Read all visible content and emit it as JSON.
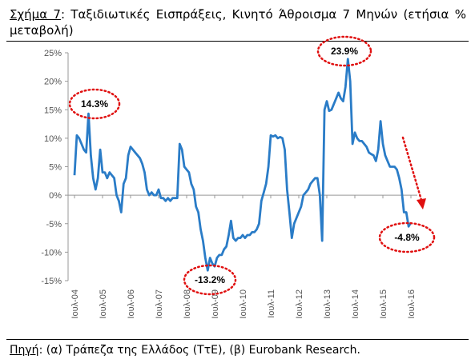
{
  "caption_label": "Σχήμα 7",
  "caption": ": Ταξιδιωτικές Εισπράξεις, Κινητό Άθροισμα 7 Μηνών (ετήσια % μεταβολή)",
  "source_label": "Πηγή",
  "source": ": (α) Τράπεζα της Ελλάδος (ΤτΕ), (β) Eurobank Research.",
  "chart_data": {
    "type": "line",
    "color": "#2a7cc7",
    "ylim": [
      -15,
      25
    ],
    "yticks": [
      {
        "value": -15,
        "label": "-15%"
      },
      {
        "value": -10,
        "label": "-10%"
      },
      {
        "value": -5,
        "label": "-5%"
      },
      {
        "value": 0,
        "label": "0%"
      },
      {
        "value": 5,
        "label": "5%"
      },
      {
        "value": 10,
        "label": "10%"
      },
      {
        "value": 15,
        "label": "15%"
      },
      {
        "value": 20,
        "label": "20%"
      },
      {
        "value": 25,
        "label": "25%"
      }
    ],
    "categories": [
      "Ιουλ-04",
      null,
      null,
      null,
      null,
      null,
      null,
      null,
      null,
      null,
      null,
      null,
      "Ιουλ-05",
      null,
      null,
      null,
      null,
      null,
      null,
      null,
      null,
      null,
      null,
      null,
      "Ιουλ-06",
      null,
      null,
      null,
      null,
      null,
      null,
      null,
      null,
      null,
      null,
      null,
      "Ιουλ-07",
      null,
      null,
      null,
      null,
      null,
      null,
      null,
      null,
      null,
      null,
      null,
      "Ιουλ-08",
      null,
      null,
      null,
      null,
      null,
      null,
      null,
      null,
      null,
      null,
      null,
      "Ιουλ-09",
      null,
      null,
      null,
      null,
      null,
      null,
      null,
      null,
      null,
      null,
      null,
      "Ιουλ-10",
      null,
      null,
      null,
      null,
      null,
      null,
      null,
      null,
      null,
      null,
      null,
      "Ιουλ-11",
      null,
      null,
      null,
      null,
      null,
      null,
      null,
      null,
      null,
      null,
      null,
      "Ιουλ-12",
      null,
      null,
      null,
      null,
      null,
      null,
      null,
      null,
      null,
      null,
      null,
      "Ιουλ-13",
      null,
      null,
      null,
      null,
      null,
      null,
      null,
      null,
      null,
      null,
      null,
      "Ιουλ-14",
      null,
      null,
      null,
      null,
      null,
      null,
      null,
      null,
      null,
      null,
      null,
      "Ιουλ-15",
      null,
      null,
      null,
      null,
      null,
      null,
      null,
      null,
      null,
      null,
      null,
      "Ιουλ-16"
    ],
    "values": [
      3.5,
      10.5,
      10,
      9,
      8,
      7.5,
      14.3,
      7,
      3,
      1,
      3,
      8,
      4,
      4,
      3,
      4,
      3.5,
      3,
      0,
      -1,
      -3,
      2,
      3,
      7,
      8.5,
      8,
      7.5,
      7,
      6.5,
      5.5,
      4,
      1,
      0,
      0.5,
      0,
      0,
      1,
      -0.5,
      -0.5,
      -1,
      -0.5,
      -1,
      -0.5,
      -0.5,
      -0.5,
      9,
      8,
      5,
      4.5,
      4,
      2,
      1,
      -2,
      -3,
      -6,
      -8,
      -11,
      -13.2,
      -11,
      -12,
      -12.5,
      -11,
      -10.5,
      -10.5,
      -9.5,
      -9,
      -7,
      -4.5,
      -7.5,
      -8,
      -7.5,
      -7.5,
      -7,
      -7.5,
      -7,
      -7,
      -6.5,
      -6.5,
      -6,
      -5,
      -1,
      0.5,
      2,
      5,
      10.5,
      10.3,
      10.5,
      10,
      10.2,
      10,
      8,
      1,
      -3,
      -7.5,
      -5,
      -4,
      -3,
      -2,
      0,
      0.5,
      1,
      2,
      2.5,
      3,
      3,
      0,
      -8,
      15,
      16.5,
      14.8,
      15,
      16,
      17,
      18,
      17,
      16.5,
      19,
      23.9,
      20,
      9,
      11,
      10,
      9.5,
      9.5,
      9,
      8.5,
      7.5,
      7.2,
      7,
      6,
      8,
      13,
      9,
      7,
      6,
      5,
      5,
      5,
      4.5,
      3,
      1,
      -3,
      -3,
      -5.5,
      -4.8
    ],
    "annotations": [
      "14.3%",
      "23.9%",
      "-13.2%",
      "-4.8%"
    ]
  }
}
